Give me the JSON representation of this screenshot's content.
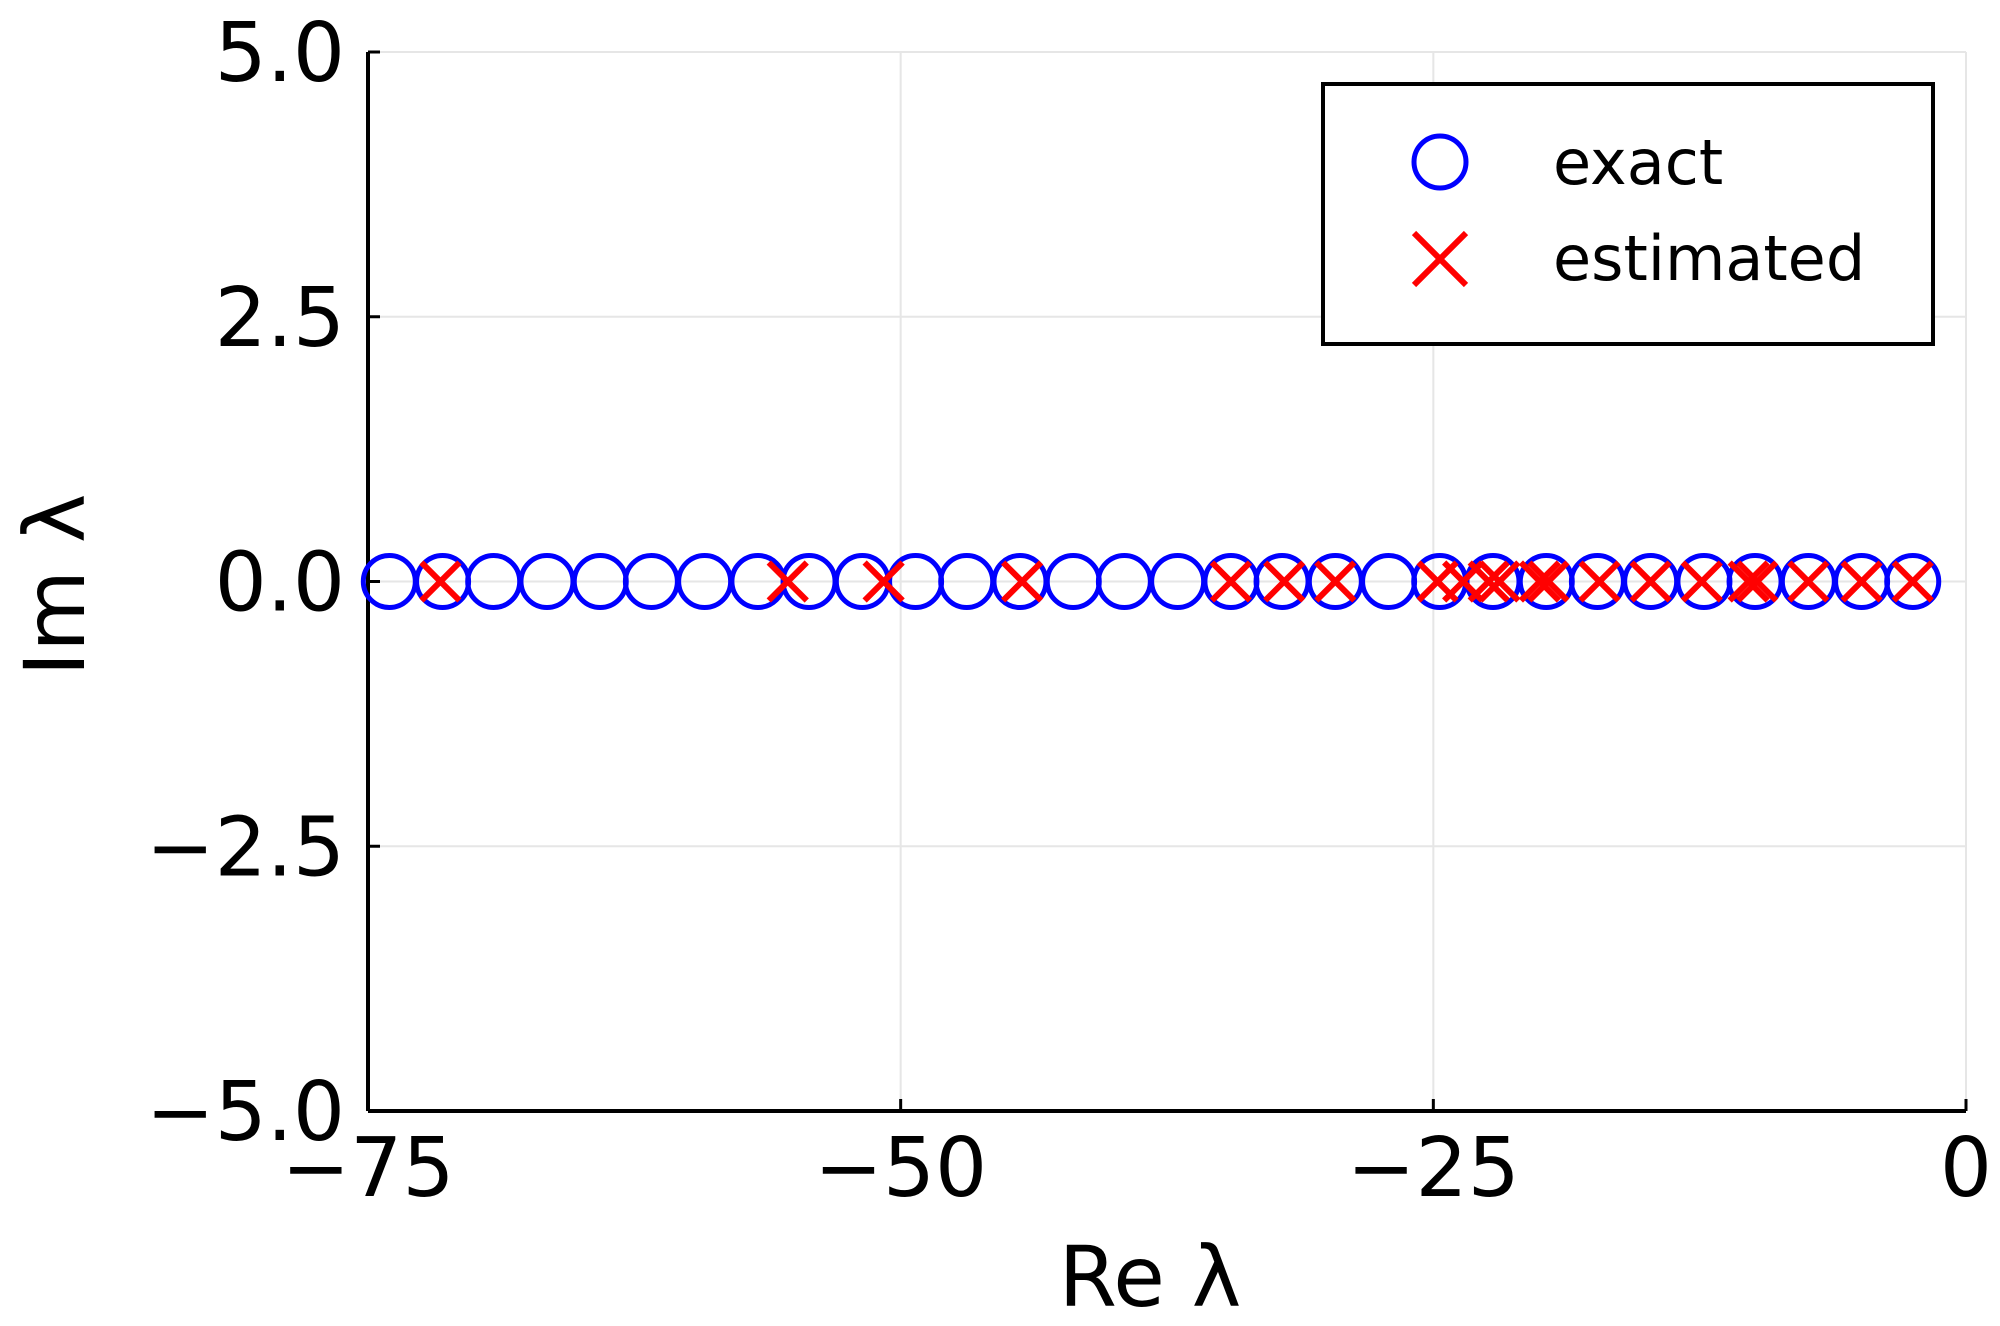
{
  "chart_data": {
    "type": "scatter",
    "xlabel": "Re λ",
    "ylabel": "Im λ",
    "xlim": [
      -75,
      0
    ],
    "ylim": [
      -5,
      5
    ],
    "xticks": [
      -75,
      -50,
      -25,
      0
    ],
    "xtick_labels": [
      "−75",
      "−50",
      "−25",
      "0"
    ],
    "yticks": [
      5,
      2.5,
      0,
      -2.5,
      -5
    ],
    "ytick_labels": [
      "5.0",
      "2.5",
      "0.0",
      "−2.5",
      "−5.0"
    ],
    "grid": true,
    "legend_position": "top-right",
    "series": [
      {
        "name": "exact",
        "marker": "circle",
        "color": "#0000ff",
        "x": [
          -74.0,
          -71.5,
          -69.1,
          -66.6,
          -64.1,
          -61.7,
          -59.2,
          -56.7,
          -54.3,
          -51.8,
          -49.3,
          -46.9,
          -44.4,
          -41.9,
          -39.5,
          -37.0,
          -34.5,
          -32.1,
          -29.6,
          -27.1,
          -24.7,
          -22.2,
          -19.7,
          -17.3,
          -14.8,
          -12.3,
          -9.9,
          -7.4,
          -4.9,
          -2.5
        ],
        "y": [
          0,
          0,
          0,
          0,
          0,
          0,
          0,
          0,
          0,
          0,
          0,
          0,
          0,
          0,
          0,
          0,
          0,
          0,
          0,
          0,
          0,
          0,
          0,
          0,
          0,
          0,
          0,
          0,
          0,
          0
        ]
      },
      {
        "name": "estimated",
        "marker": "x",
        "color": "#ff0000",
        "x": [
          -71.6,
          -55.3,
          -50.8,
          -44.3,
          -34.5,
          -32.0,
          -29.6,
          -24.8,
          -23.6,
          -22.4,
          -21.9,
          -20.0,
          -19.6,
          -17.2,
          -14.8,
          -12.4,
          -10.2,
          -9.8,
          -7.4,
          -4.9,
          -2.5
        ],
        "y": [
          0,
          0,
          0,
          0,
          0,
          0,
          0,
          0,
          0,
          0,
          0,
          0,
          0,
          0,
          0,
          0,
          0,
          0,
          0,
          0,
          0
        ]
      }
    ]
  }
}
